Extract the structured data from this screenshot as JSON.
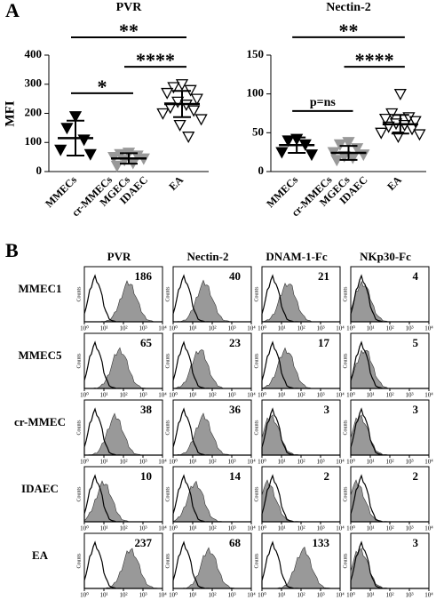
{
  "panel_a": {
    "letter": "A",
    "ylabel": "MFI",
    "charts": [
      {
        "type": "scatter",
        "title": "PVR",
        "ylim": [
          0,
          400
        ],
        "yticks": [
          0,
          100,
          200,
          300,
          400
        ],
        "groups": [
          {
            "labels": [
              "MMECs"
            ],
            "color": "#000000",
            "values": [
              190,
              150,
              110,
              75,
              60
            ],
            "mean": 115,
            "sd": 60
          },
          {
            "labels": [
              "cr-MMECs",
              "MGECs",
              "IDAEC"
            ],
            "color": "#999999",
            "values": [
              65,
              60,
              55,
              50,
              45,
              40,
              30,
              20
            ],
            "mean": 45,
            "sd": 18
          },
          {
            "labels": [
              "EA"
            ],
            "color": "none",
            "values": [
              300,
              290,
              280,
              270,
              250,
              240,
              230,
              220,
              210,
              200,
              180,
              160,
              120
            ],
            "mean": 232,
            "sd": 45
          }
        ],
        "annotations": [
          {
            "text": "*",
            "from": 0,
            "to": 1,
            "y": 269
          },
          {
            "text": "****",
            "from": 1,
            "to": 2,
            "y": 360
          },
          {
            "text": "**",
            "from": 0,
            "to": 2,
            "y": 461
          }
        ]
      },
      {
        "type": "scatter",
        "title": "Nectin-2",
        "ylim": [
          0,
          150
        ],
        "yticks": [
          0,
          50,
          100,
          150
        ],
        "groups": [
          {
            "labels": [
              "MMECs"
            ],
            "color": "#000000",
            "values": [
              42,
              40,
              35,
              25,
              22
            ],
            "mean": 34,
            "sd": 10
          },
          {
            "labels": [
              "cr-MMECs",
              "MGECs",
              "IDAEC"
            ],
            "color": "#999999",
            "values": [
              38,
              35,
              30,
              25,
              22,
              20,
              18,
              15
            ],
            "mean": 24,
            "sd": 9
          },
          {
            "labels": [
              "EA"
            ],
            "color": "none",
            "values": [
              100,
              75,
              70,
              68,
              65,
              62,
              60,
              58,
              55,
              50,
              48,
              45
            ],
            "mean": 61,
            "sd": 12
          }
        ],
        "annotations": [
          {
            "text": "p=ns",
            "from": 0,
            "to": 1,
            "y": 78
          },
          {
            "text": "****",
            "from": 1,
            "to": 2,
            "y": 135
          },
          {
            "text": "**",
            "from": 0,
            "to": 2,
            "y": 173
          }
        ]
      }
    ]
  },
  "panel_b": {
    "letter": "B",
    "type": "histogram-grid",
    "columns": [
      "PVR",
      "Nectin-2",
      "DNAM-1-Fc",
      "NKp30-Fc"
    ],
    "rows": [
      "MMEC1",
      "MMEC5",
      "cr-MMEC",
      "IDAEC",
      "EA"
    ],
    "values": [
      [
        186,
        40,
        21,
        4
      ],
      [
        65,
        23,
        17,
        5
      ],
      [
        38,
        36,
        3,
        3
      ],
      [
        10,
        14,
        2,
        2
      ],
      [
        237,
        68,
        133,
        3
      ]
    ],
    "ylabel": "Counts",
    "log": true,
    "xlim": [
      1,
      10000
    ],
    "xticks": [
      {
        "value": 1,
        "label": "10⁰"
      },
      {
        "value": 10,
        "label": "10¹"
      },
      {
        "value": 100,
        "label": "10²"
      },
      {
        "value": 1000,
        "label": "10³"
      },
      {
        "value": 10000,
        "label": "10⁴"
      }
    ],
    "fill": "#999999"
  }
}
